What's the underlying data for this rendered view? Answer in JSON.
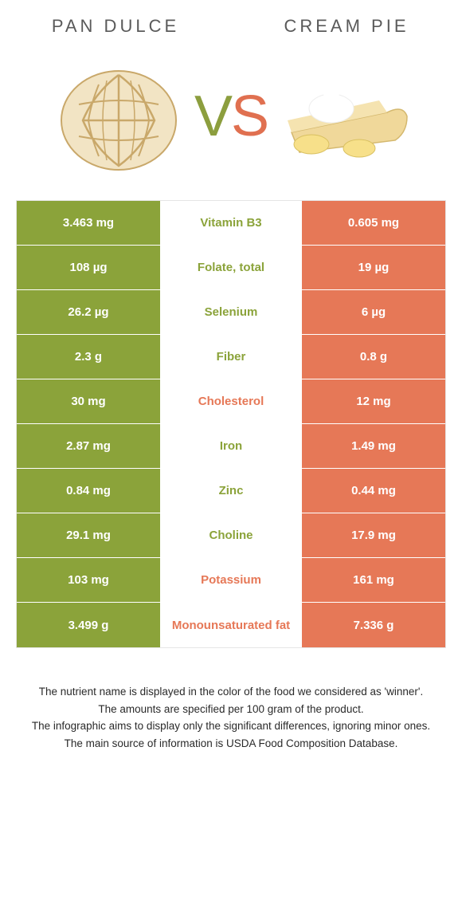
{
  "colors": {
    "left": "#8ba33a",
    "right": "#e67857",
    "text": "#5a5a5a",
    "white": "#ffffff"
  },
  "header": {
    "left": "PAN DULCE",
    "right": "CREAM PIE"
  },
  "vs": {
    "v": "V",
    "s": "S"
  },
  "rows": [
    {
      "left": "3.463 mg",
      "label": "Vitamin B3",
      "right": "0.605 mg",
      "winner": "left"
    },
    {
      "left": "108 µg",
      "label": "Folate, total",
      "right": "19 µg",
      "winner": "left"
    },
    {
      "left": "26.2 µg",
      "label": "Selenium",
      "right": "6 µg",
      "winner": "left"
    },
    {
      "left": "2.3 g",
      "label": "Fiber",
      "right": "0.8 g",
      "winner": "left"
    },
    {
      "left": "30 mg",
      "label": "Cholesterol",
      "right": "12 mg",
      "winner": "right"
    },
    {
      "left": "2.87 mg",
      "label": "Iron",
      "right": "1.49 mg",
      "winner": "left"
    },
    {
      "left": "0.84 mg",
      "label": "Zinc",
      "right": "0.44 mg",
      "winner": "left"
    },
    {
      "left": "29.1 mg",
      "label": "Choline",
      "right": "17.9 mg",
      "winner": "left"
    },
    {
      "left": "103 mg",
      "label": "Potassium",
      "right": "161 mg",
      "winner": "right"
    },
    {
      "left": "3.499 g",
      "label": "Monounsaturated fat",
      "right": "7.336 g",
      "winner": "right"
    }
  ],
  "footnotes": [
    "The nutrient name is displayed in the color of the food we considered as 'winner'.",
    "The amounts are specified per 100 gram of the product.",
    "The infographic aims to display only the significant differences, ignoring minor ones.",
    "The main source of information is USDA Food Composition Database."
  ]
}
